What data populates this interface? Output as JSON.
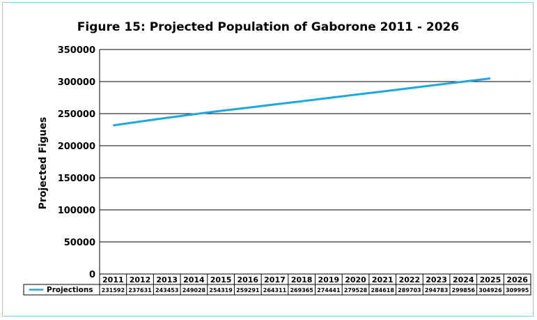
{
  "chart_data": {
    "type": "line",
    "title": "Figure 15: Projected Population of Gaborone 2011 - 2026",
    "xlabel": "",
    "ylabel": "Projected Figues",
    "ylim": [
      0,
      350000
    ],
    "yticks": [
      0,
      50000,
      100000,
      150000,
      200000,
      250000,
      300000,
      350000
    ],
    "categories": [
      "2011",
      "2012",
      "2013",
      "2014",
      "2015",
      "2016",
      "2017",
      "2018",
      "2019",
      "2020",
      "2021",
      "2022",
      "2023",
      "2024",
      "2025",
      "2026"
    ],
    "series": [
      {
        "name": "Projections",
        "color": "#1ea7e1",
        "values": [
          231592,
          237631,
          243453,
          249028,
          254319,
          259291,
          264311,
          269365,
          274441,
          279528,
          284618,
          289703,
          294783,
          299856,
          304926,
          309995
        ]
      }
    ],
    "grid": true,
    "legend": "data-table"
  }
}
